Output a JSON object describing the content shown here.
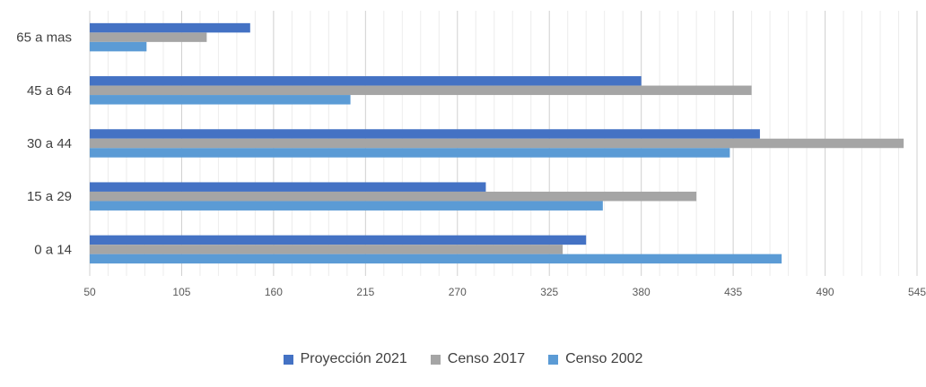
{
  "chart_data": {
    "type": "bar",
    "orientation": "horizontal",
    "title": "",
    "xlabel": "",
    "ylabel": "",
    "categories": [
      "0 a 14",
      "15 a 29",
      "30 a 44",
      "45 a 64",
      "65 a mas"
    ],
    "series": [
      {
        "name": "Proyección 2021",
        "color": "#4472C4",
        "values": [
          347,
          287,
          451,
          380,
          146
        ]
      },
      {
        "name": "Censo 2017",
        "color": "#A5A5A5",
        "values": [
          333,
          413,
          537,
          446,
          120
        ]
      },
      {
        "name": "Censo 2002",
        "color": "#5B9BD5",
        "values": [
          464,
          357,
          433,
          206,
          84
        ]
      }
    ],
    "xlim": [
      50,
      545
    ],
    "xticks": [
      50,
      105,
      160,
      215,
      270,
      325,
      380,
      435,
      490,
      545
    ],
    "grid": "vertical",
    "legend_position": "bottom"
  }
}
